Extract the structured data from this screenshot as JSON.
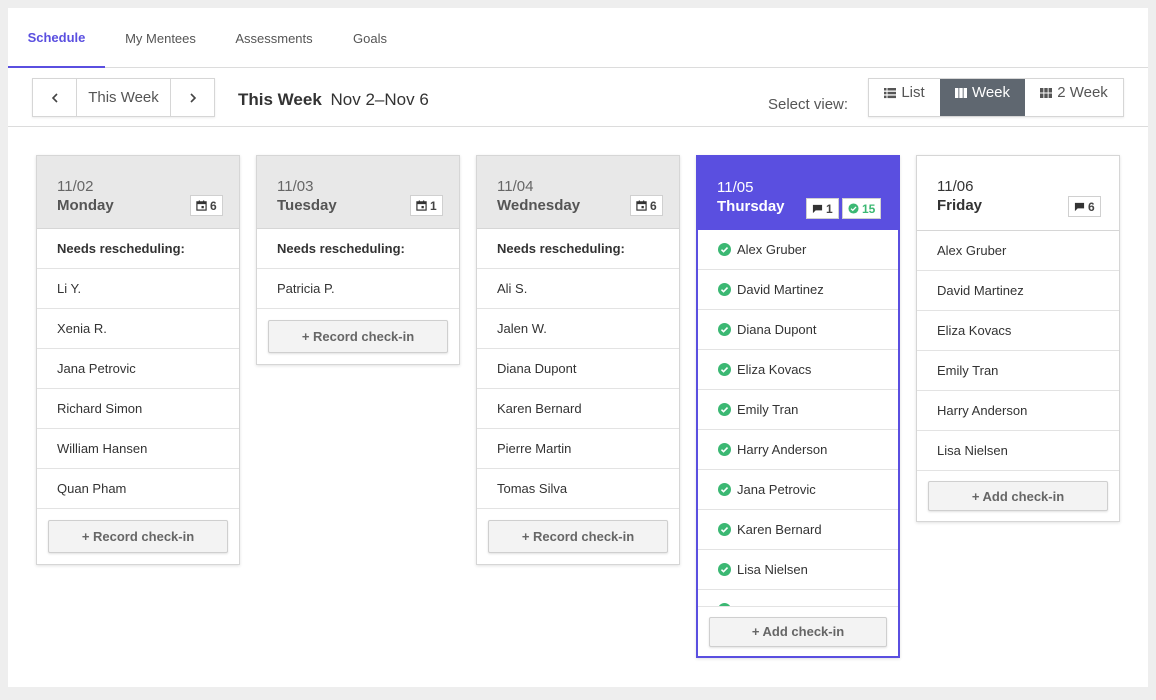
{
  "tabs": [
    {
      "label": "Schedule",
      "active": true
    },
    {
      "label": "My Mentees",
      "active": false
    },
    {
      "label": "Assessments",
      "active": false
    },
    {
      "label": "Goals",
      "active": false
    }
  ],
  "toolbar": {
    "nav_label": "This Week",
    "week_title": "This Week",
    "week_range": "Nov 2–Nov 6",
    "select_view_label": "Select view:",
    "views": [
      {
        "label": "List",
        "icon": "list-icon"
      },
      {
        "label": "Week",
        "icon": "week-columns-icon",
        "active": true
      },
      {
        "label": "2 Week",
        "icon": "grid-icon"
      }
    ]
  },
  "colors": {
    "accent": "#5a4fe0",
    "success": "#3bb873",
    "active_view": "#5f6770"
  },
  "days": [
    {
      "date": "11/02",
      "name": "Monday",
      "badge_icon": "calendar-icon",
      "badge_count": "6",
      "section_title": "Needs rescheduling:",
      "people": [
        "Li Y.",
        "Xenia R.",
        "Jana Petrovic",
        "Richard Simon",
        "William Hansen",
        "Quan Pham"
      ],
      "button": "+ Record check-in"
    },
    {
      "date": "11/03",
      "name": "Tuesday",
      "badge_icon": "calendar-icon",
      "badge_count": "1",
      "section_title": "Needs rescheduling:",
      "people": [
        "Patricia P."
      ],
      "button": "+ Record check-in"
    },
    {
      "date": "11/04",
      "name": "Wednesday",
      "badge_icon": "calendar-icon",
      "badge_count": "6",
      "section_title": "Needs rescheduling:",
      "people": [
        "Ali S.",
        "Jalen W.",
        "Diana Dupont",
        "Karen Bernard",
        "Pierre Martin",
        "Tomas Silva"
      ],
      "button": "+ Record check-in"
    },
    {
      "date": "11/05",
      "name": "Thursday",
      "badge_chat_count": "1",
      "badge_done_count": "15",
      "people": [
        "Alex Gruber",
        "David Martinez",
        "Diana Dupont",
        "Eliza Kovacs",
        "Emily Tran",
        "Harry Anderson",
        "Jana Petrovic",
        "Karen Bernard",
        "Lisa Nielsen"
      ],
      "button": "+ Add check-in"
    },
    {
      "date": "11/06",
      "name": "Friday",
      "badge_icon": "chat-icon",
      "badge_count": "6",
      "people": [
        "Alex Gruber",
        "David Martinez",
        "Eliza Kovacs",
        "Emily Tran",
        "Harry Anderson",
        "Lisa Nielsen"
      ],
      "button": "+ Add check-in"
    }
  ]
}
